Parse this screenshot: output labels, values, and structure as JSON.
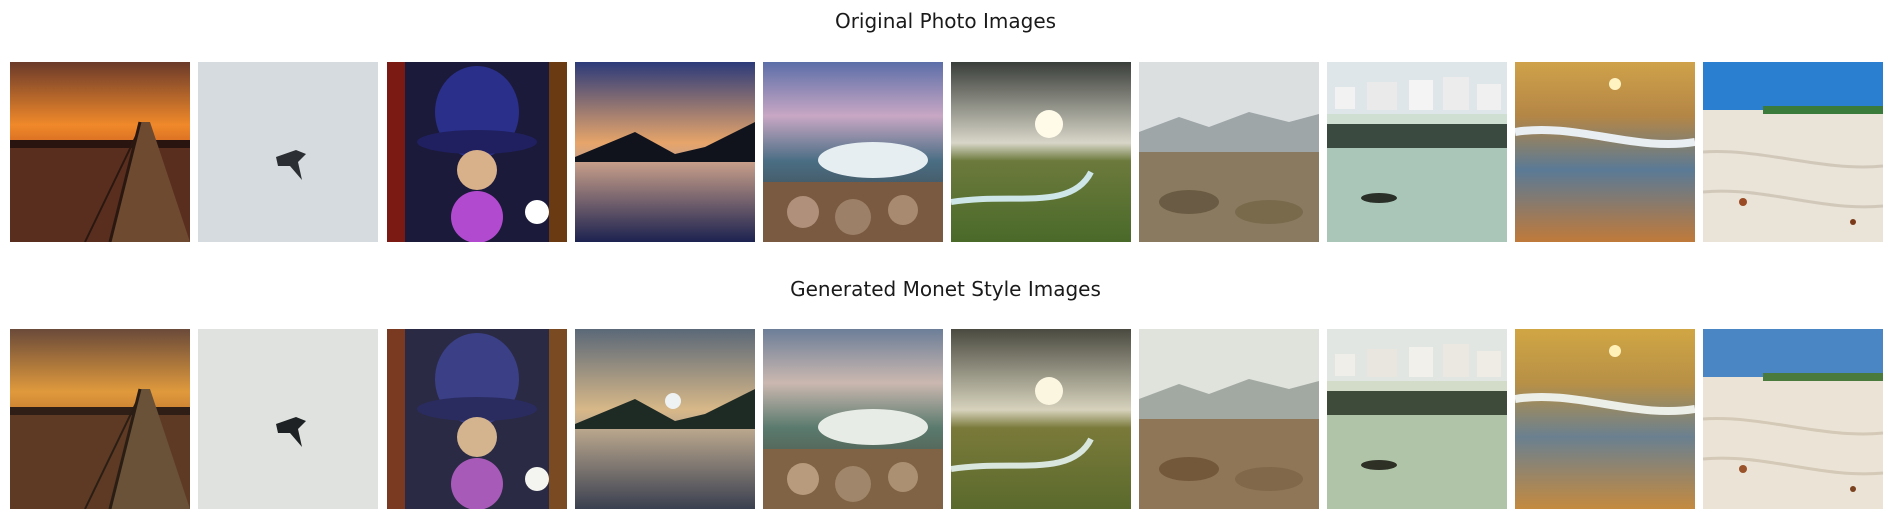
{
  "rows": [
    {
      "title": "Original Photo Images",
      "images": [
        "sunset-boardwalk-photo",
        "jet-in-grey-sky-photo",
        "wizard-plasma-ball-photo",
        "lake-sunset-reflection-photo",
        "waves-on-rocks-photo",
        "sunburst-marsh-photo",
        "misty-mountain-shrubland-photo",
        "harbor-town-boat-photo",
        "golden-sea-wave-photo",
        "sandy-beach-photo"
      ]
    },
    {
      "title": "Generated Monet Style Images",
      "images": [
        "sunset-boardwalk-monet",
        "jet-in-grey-sky-monet",
        "wizard-plasma-ball-monet",
        "lake-sunset-reflection-monet",
        "waves-on-rocks-monet",
        "sunburst-marsh-monet",
        "misty-mountain-shrubland-monet",
        "harbor-town-boat-monet",
        "golden-sea-wave-monet",
        "sandy-beach-monet"
      ]
    }
  ]
}
